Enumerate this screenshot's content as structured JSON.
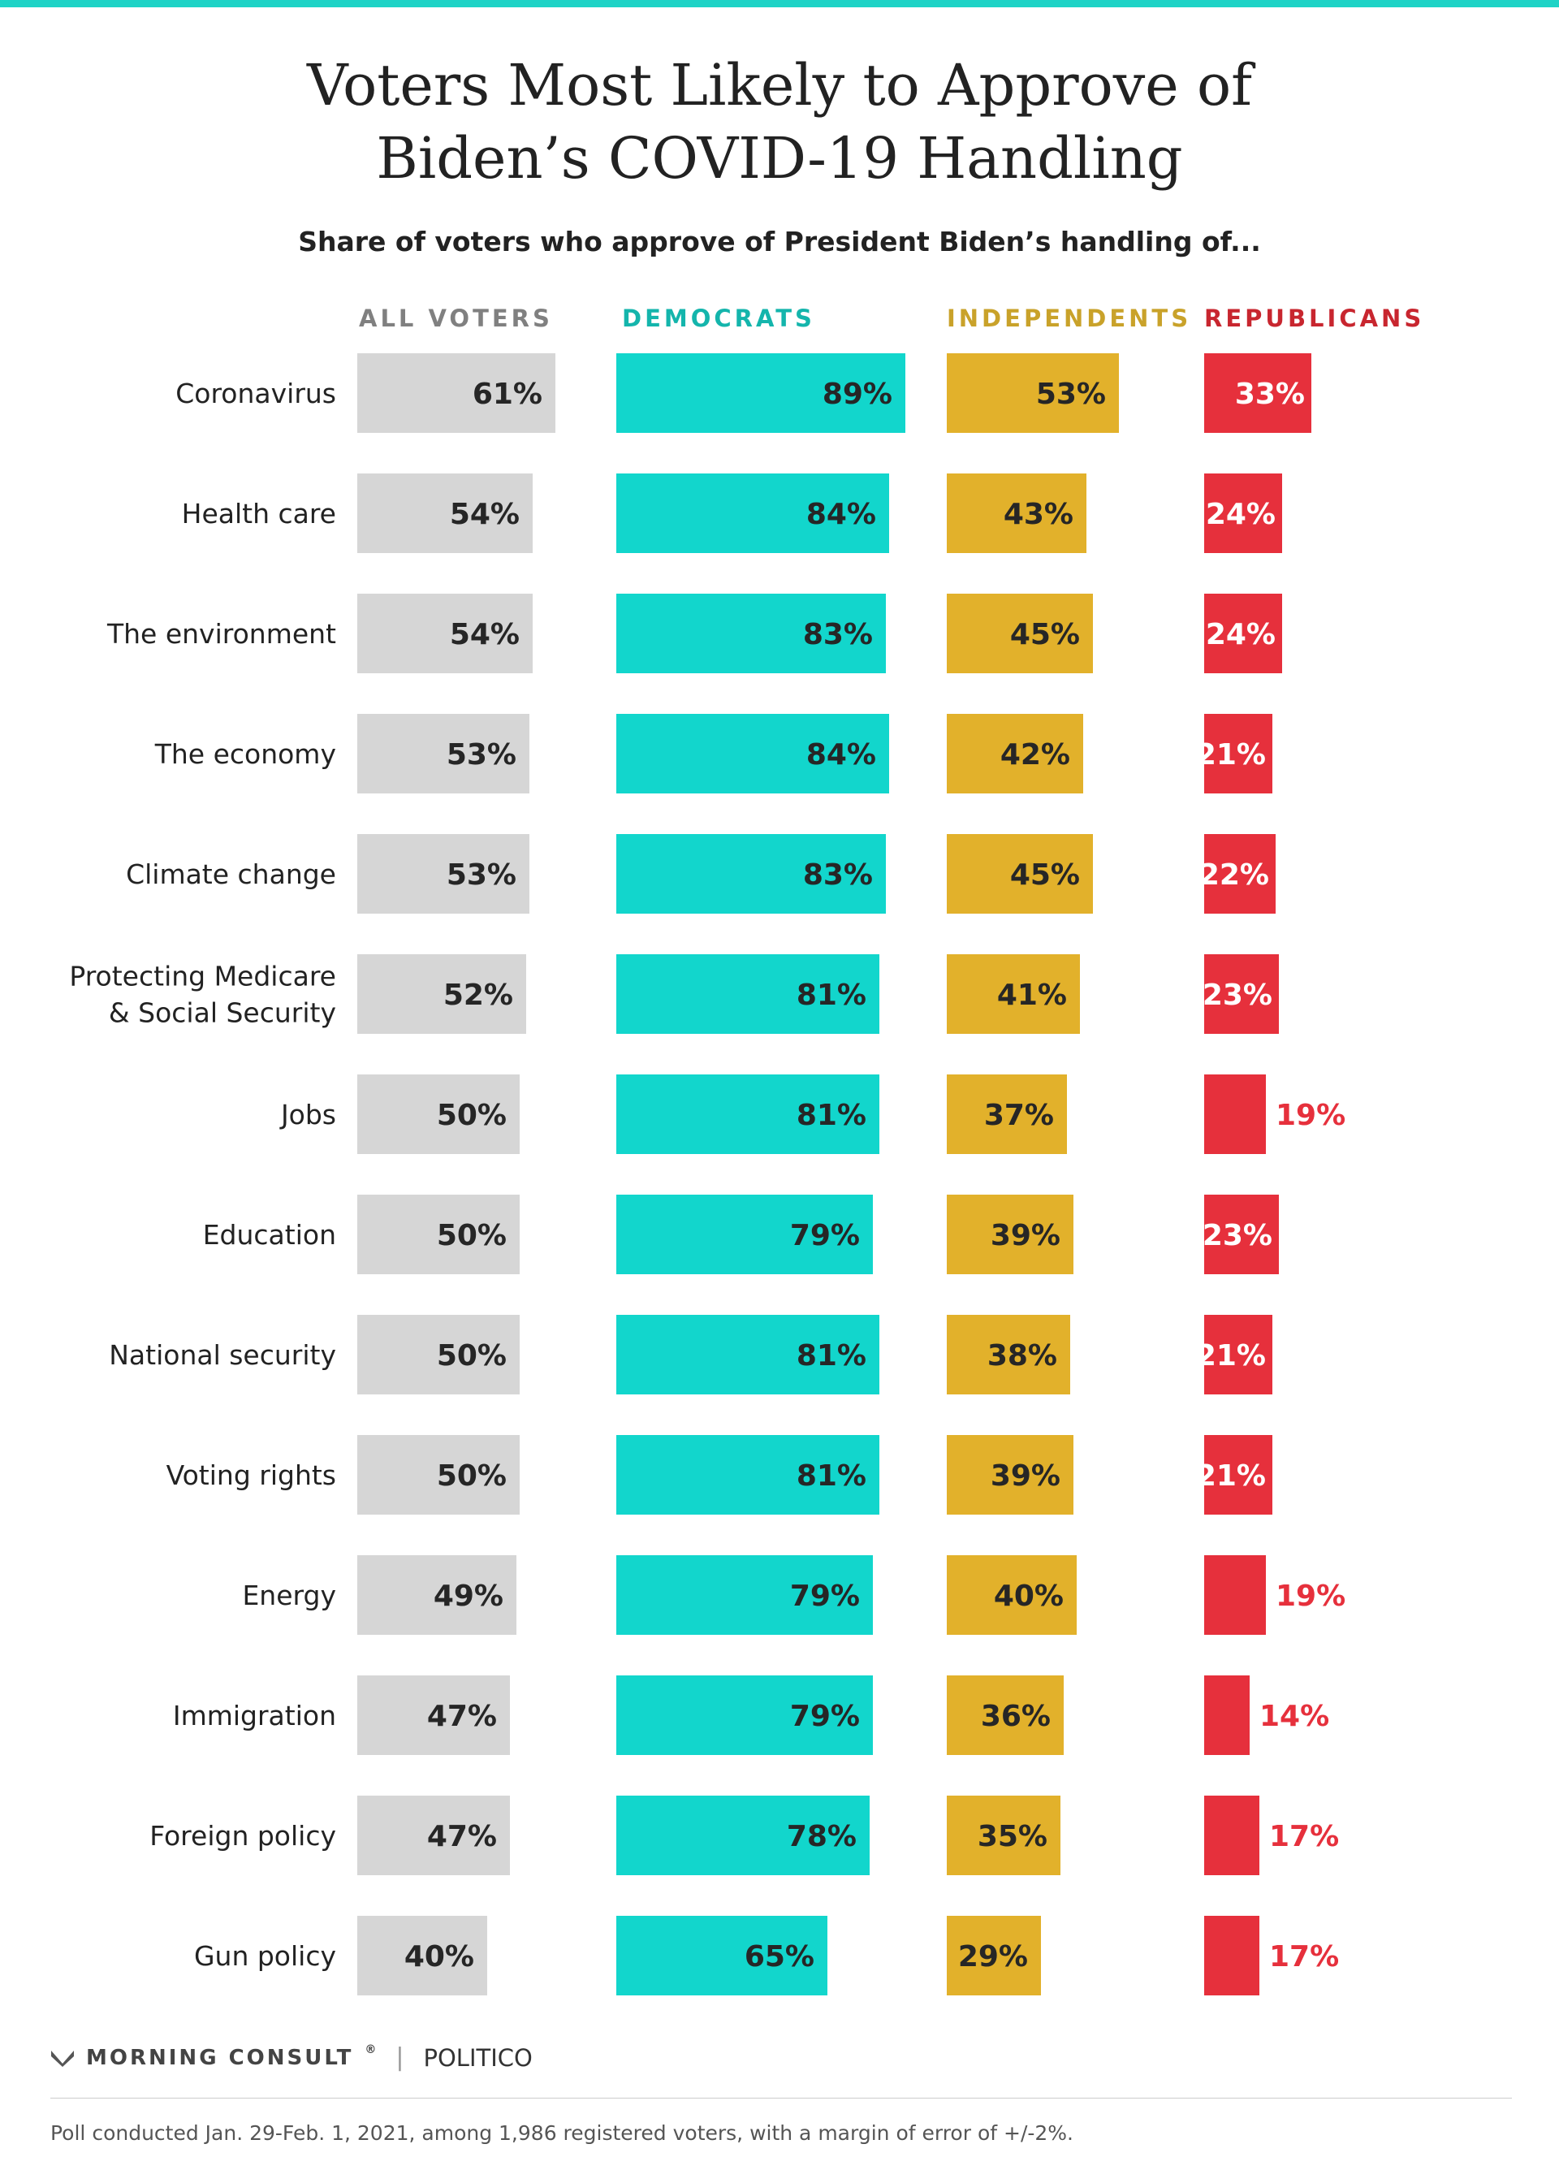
{
  "title_line1": "Voters Most Likely to Approve of",
  "title_line2": "Biden’s COVID-19 Handling",
  "subtitle": "Share of voters who approve of President Biden’s handling of...",
  "colors": {
    "all_voters": "#d6d6d6",
    "democrats": "#12d6cc",
    "independents": "#e2b12b",
    "republicans": "#e6303c",
    "header_all": "#808080",
    "header_dem": "#14b5ac",
    "header_ind": "#c9a22a",
    "header_rep": "#c8262f",
    "topline": "#1ed3c6"
  },
  "chart_data": {
    "type": "bar",
    "orientation": "horizontal",
    "value_format": "{v}%",
    "categories": [
      "Coronavirus",
      "Health care",
      "The environment",
      "The economy",
      "Climate change",
      "Protecting Medicare\n& Social Security",
      "Jobs",
      "Education",
      "National security",
      "Voting rights",
      "Energy",
      "Immigration",
      "Foreign policy",
      "Gun policy"
    ],
    "series": [
      {
        "name": "ALL VOTERS",
        "values": [
          61,
          54,
          54,
          53,
          53,
          52,
          50,
          50,
          50,
          50,
          49,
          47,
          47,
          40
        ]
      },
      {
        "name": "DEMOCRATS",
        "values": [
          89,
          84,
          83,
          84,
          83,
          81,
          81,
          79,
          81,
          81,
          79,
          79,
          78,
          65
        ]
      },
      {
        "name": "INDEPENDENTS",
        "values": [
          53,
          43,
          45,
          42,
          45,
          41,
          37,
          39,
          38,
          39,
          40,
          36,
          35,
          29
        ]
      },
      {
        "name": "REPUBLICANS",
        "values": [
          33,
          24,
          24,
          21,
          22,
          23,
          19,
          23,
          21,
          21,
          19,
          14,
          17,
          17
        ]
      }
    ],
    "value_labels": [
      [
        "61%",
        "54%",
        "54%",
        "53%",
        "53%",
        "52%",
        "50%",
        "50%",
        "50%",
        "50%",
        "49%",
        "47%",
        "47%",
        "40%"
      ],
      [
        "89%",
        "84%",
        "83%",
        "84%",
        "83%",
        "81%",
        "81%",
        "79%",
        "81%",
        "81%",
        "79%",
        "79%",
        "78%",
        "65%"
      ],
      [
        "53%",
        "43%",
        "45%",
        "42%",
        "45%",
        "41%",
        "37%",
        "39%",
        "38%",
        "39%",
        "40%",
        "36%",
        "35%",
        "29%"
      ],
      [
        "33%",
        "24%",
        "24%",
        "21%",
        "22%",
        "23%",
        "19%",
        "23%",
        "21%",
        "21%",
        "19%",
        "14%",
        "17%",
        "17%"
      ]
    ],
    "xlim": [
      0,
      100
    ],
    "grid": false,
    "legend": "column headers"
  },
  "footer": {
    "brand1": "MORNING CONSULT",
    "brand1_mark": "®",
    "separator": "|",
    "brand2": "POLITICO",
    "note": "Poll conducted Jan. 29-Feb. 1, 2021, among 1,986 registered voters, with a margin of error of +/-2%."
  }
}
